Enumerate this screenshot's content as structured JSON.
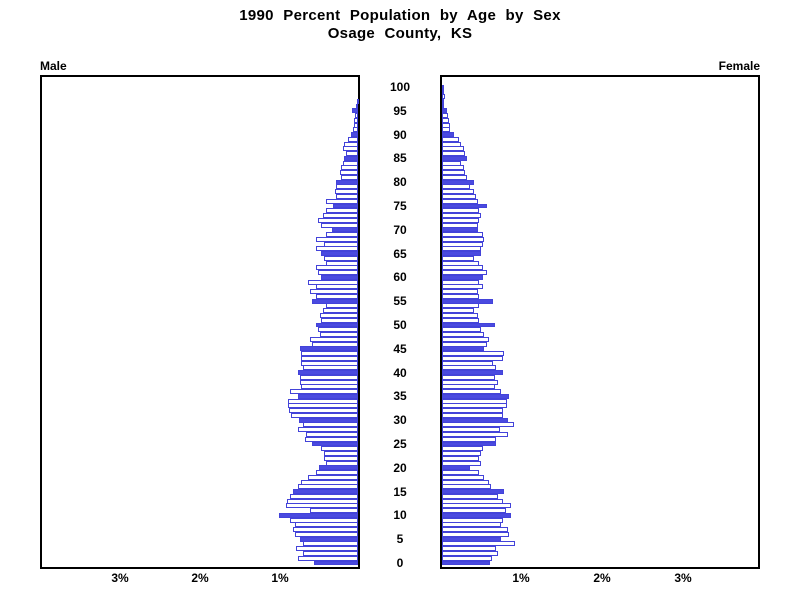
{
  "title": {
    "line1": "1990 Percent Population by Age by Sex",
    "line2": "Osage County, KS"
  },
  "panels": {
    "male_label": "Male",
    "female_label": "Female"
  },
  "colors": {
    "bar_blue": "#4a4ae0",
    "bar_outline_blue": "#4343d9",
    "axis_black": "#000000",
    "background": "#ffffff"
  },
  "chart_data": {
    "type": "bar",
    "subtype": "population-pyramid",
    "title": "1990 Percent Population by Age by Sex — Osage County, KS",
    "unit": "percent of total population",
    "orientation": "horizontal, male left / female right, age 0 bottom to 100 top",
    "highlight_every_5_years": true,
    "age_axis_tick_labels": [
      "0",
      "5",
      "10",
      "15",
      "20",
      "25",
      "30",
      "35",
      "40",
      "45",
      "50",
      "55",
      "60",
      "65",
      "70",
      "75",
      "80",
      "85",
      "90",
      "95",
      "100"
    ],
    "pct_axis": {
      "male_tick_labels": [
        "3%",
        "2%",
        "1%"
      ],
      "male_tick_values": [
        3,
        2,
        1
      ],
      "female_tick_labels": [
        "1%",
        "2%",
        "3%"
      ],
      "female_tick_values": [
        1,
        2,
        3
      ],
      "xlim_pct": [
        0,
        4
      ]
    },
    "ages": "index of values arrays = age in years, 0 through 100",
    "series": [
      {
        "name": "Male",
        "values_pct": [
          0.55,
          0.75,
          0.69,
          0.77,
          0.69,
          0.73,
          0.79,
          0.81,
          0.79,
          0.85,
          0.99,
          0.6,
          0.9,
          0.89,
          0.85,
          0.81,
          0.75,
          0.71,
          0.63,
          0.52,
          0.49,
          0.4,
          0.42,
          0.43,
          0.46,
          0.58,
          0.66,
          0.65,
          0.75,
          0.69,
          0.74,
          0.84,
          0.86,
          0.87,
          0.88,
          0.75,
          0.85,
          0.71,
          0.73,
          0.72,
          0.75,
          0.69,
          0.71,
          0.71,
          0.71,
          0.73,
          0.58,
          0.6,
          0.48,
          0.5,
          0.52,
          0.46,
          0.48,
          0.44,
          0.4,
          0.58,
          0.52,
          0.6,
          0.52,
          0.63,
          0.46,
          0.5,
          0.52,
          0.4,
          0.42,
          0.46,
          0.52,
          0.42,
          0.52,
          0.4,
          0.33,
          0.46,
          0.5,
          0.44,
          0.4,
          0.31,
          0.4,
          0.27,
          0.29,
          0.27,
          0.27,
          0.21,
          0.23,
          0.21,
          0.19,
          0.17,
          0.15,
          0.19,
          0.17,
          0.13,
          0.09,
          0.06,
          0.05,
          0.05,
          0.04,
          0.08,
          0.03,
          0.01,
          0.0,
          0.0,
          0.0
        ]
      },
      {
        "name": "Female",
        "values_pct": [
          0.59,
          0.62,
          0.69,
          0.67,
          0.9,
          0.73,
          0.83,
          0.81,
          0.73,
          0.75,
          0.85,
          0.79,
          0.85,
          0.75,
          0.69,
          0.77,
          0.6,
          0.58,
          0.52,
          0.46,
          0.35,
          0.48,
          0.46,
          0.48,
          0.5,
          0.67,
          0.67,
          0.81,
          0.71,
          0.89,
          0.81,
          0.75,
          0.75,
          0.8,
          0.8,
          0.83,
          0.73,
          0.66,
          0.69,
          0.65,
          0.75,
          0.67,
          0.63,
          0.75,
          0.77,
          0.52,
          0.56,
          0.58,
          0.52,
          0.48,
          0.65,
          0.46,
          0.44,
          0.4,
          0.46,
          0.63,
          0.46,
          0.44,
          0.5,
          0.46,
          0.5,
          0.56,
          0.5,
          0.46,
          0.4,
          0.48,
          0.48,
          0.5,
          0.52,
          0.5,
          0.44,
          0.44,
          0.46,
          0.48,
          0.46,
          0.56,
          0.44,
          0.42,
          0.4,
          0.35,
          0.4,
          0.31,
          0.29,
          0.27,
          0.23,
          0.31,
          0.29,
          0.27,
          0.23,
          0.21,
          0.15,
          0.1,
          0.1,
          0.09,
          0.08,
          0.06,
          0.03,
          0.03,
          0.04,
          0.01,
          0.01
        ]
      }
    ]
  }
}
